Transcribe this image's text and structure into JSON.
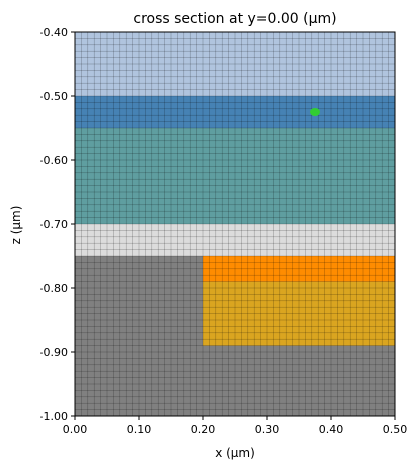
{
  "chart_data": {
    "type": "heatmap",
    "title": "cross section at y=0.00 (μm)",
    "xlabel": "x (μm)",
    "ylabel": "z (μm)",
    "xlim": [
      0.0,
      0.5
    ],
    "ylim": [
      -1.0,
      -0.4
    ],
    "x_ticks": [
      {
        "value": 0.0,
        "label": "0.00"
      },
      {
        "value": 0.1,
        "label": "0.10"
      },
      {
        "value": 0.2,
        "label": "0.20"
      },
      {
        "value": 0.3,
        "label": "0.30"
      },
      {
        "value": 0.4,
        "label": "0.40"
      },
      {
        "value": 0.5,
        "label": "0.50"
      }
    ],
    "y_ticks": [
      {
        "value": -0.4,
        "label": "-0.40"
      },
      {
        "value": -0.5,
        "label": "-0.50"
      },
      {
        "value": -0.6,
        "label": "-0.60"
      },
      {
        "value": -0.7,
        "label": "-0.70"
      },
      {
        "value": -0.8,
        "label": "-0.80"
      },
      {
        "value": -0.9,
        "label": "-0.90"
      },
      {
        "value": -1.0,
        "label": "-1.00"
      }
    ],
    "regions": [
      {
        "id": "region-top-layer",
        "x0": 0.0,
        "x1": 0.5,
        "z0": -0.5,
        "z1": -0.4,
        "color": "#b0c4de"
      },
      {
        "id": "region-blue-layer",
        "x0": 0.0,
        "x1": 0.5,
        "z0": -0.55,
        "z1": -0.5,
        "color": "#4682b4"
      },
      {
        "id": "region-teal-layer",
        "x0": 0.0,
        "x1": 0.5,
        "z0": -0.7,
        "z1": -0.55,
        "color": "#5f9ea0"
      },
      {
        "id": "region-light-gray-layer",
        "x0": 0.0,
        "x1": 0.5,
        "z0": -0.75,
        "z1": -0.7,
        "color": "#dcdcdc"
      },
      {
        "id": "region-substrate",
        "x0": 0.0,
        "x1": 0.5,
        "z0": -1.0,
        "z1": -0.75,
        "color": "#808080"
      },
      {
        "id": "region-orange-block",
        "x0": 0.2,
        "x1": 0.5,
        "z0": -0.79,
        "z1": -0.75,
        "color": "#ff8c00"
      },
      {
        "id": "region-gold-block",
        "x0": 0.2,
        "x1": 0.5,
        "z0": -0.89,
        "z1": -0.79,
        "color": "#daa520"
      }
    ],
    "markers": [
      {
        "id": "source-point",
        "x": 0.375,
        "z": -0.525,
        "color": "#32cd32"
      }
    ],
    "grid": true,
    "mesh_spacing": {
      "dx": 0.01,
      "dz": 0.01
    },
    "grid_color": "#000000"
  }
}
